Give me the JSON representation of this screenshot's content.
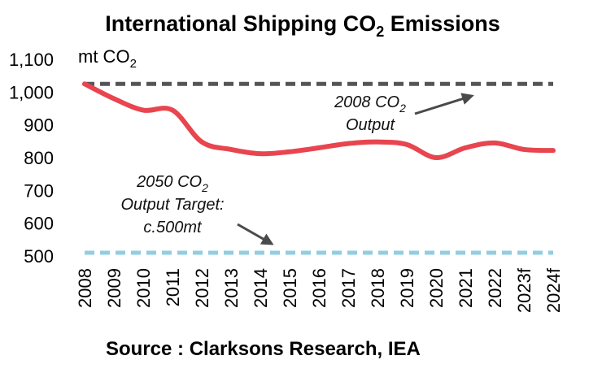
{
  "chart_data": {
    "type": "line",
    "title": "International Shipping CO",
    "title_subscript": "2",
    "title_suffix": " Emissions",
    "ylabel": "mt CO",
    "ylabel_subscript": "2",
    "ylim": [
      500,
      1100
    ],
    "yticks": [
      500,
      600,
      700,
      800,
      900,
      1000,
      1100
    ],
    "ytick_labels": [
      "500",
      "600",
      "700",
      "800",
      "900",
      "1,000",
      "1,100"
    ],
    "categories": [
      "2008",
      "2009",
      "2010",
      "2011",
      "2012",
      "2013",
      "2014",
      "2015",
      "2016",
      "2017",
      "2018",
      "2019",
      "2020",
      "2021",
      "2022",
      "2023f",
      "2024f"
    ],
    "series": [
      {
        "name": "International Shipping CO2 Emissions",
        "color": "#e8454f",
        "values": [
          1025,
          980,
          945,
          945,
          848,
          825,
          812,
          818,
          830,
          843,
          848,
          840,
          800,
          830,
          845,
          825,
          822
        ]
      }
    ],
    "reference_lines": [
      {
        "name": "2008 CO2 Output",
        "value": 1025,
        "color": "#555555"
      },
      {
        "name": "2050 CO2 Output Target",
        "value": 510,
        "color": "#92cde0"
      }
    ],
    "annotations": {
      "output_2008": {
        "line1": "2008 CO",
        "line1_sub": "2",
        "line2": "Output"
      },
      "target_2050": {
        "line1": "2050 CO",
        "line1_sub": "2",
        "line2": "Output Target:",
        "line3": "c.500mt"
      }
    },
    "source": "Source : Clarksons Research, IEA"
  }
}
